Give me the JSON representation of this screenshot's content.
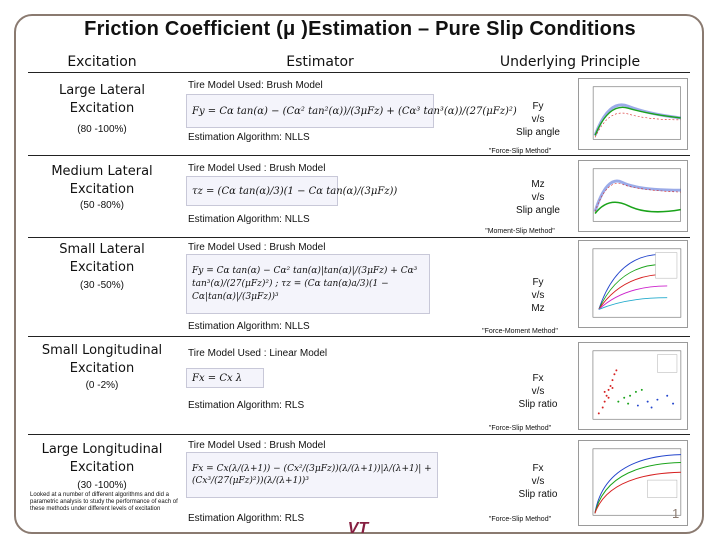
{
  "title": "Friction Coefficient (μ )Estimation – Pure Slip Conditions",
  "columns": {
    "excitation": "Excitation",
    "estimator": "Estimator",
    "principle": "Underlying Principle"
  },
  "rows": [
    {
      "name": "Large Lateral Excitation",
      "range": "(80 -100%)",
      "model": "Tire Model Used: Brush Model",
      "equation": "Fy = Cα tan(α) − (Cα² tan²(α))/(3μFz) + (Cα³ tan³(α))/(27(μFz)²)",
      "algorithm": "Estimation Algorithm: NLLS",
      "principle": [
        "Fy",
        "v/s",
        "Slip angle"
      ],
      "method": "\"Force-Slip Method\""
    },
    {
      "name": "Medium Lateral Excitation",
      "range": "(50 -80%)",
      "model": "Tire Model Used : Brush Model",
      "equation": "τz = (Cα tan(α)/3)(1 − Cα tan(α)/(3μFz))",
      "algorithm": "Estimation Algorithm: NLLS",
      "principle": [
        "Mz",
        "v/s",
        "Slip angle"
      ],
      "method": "\"Moment-Slip  Method\""
    },
    {
      "name": "Small Lateral Excitation",
      "range": "(30 -50%)",
      "model": "Tire Model Used : Brush Model",
      "equation": "Fy = Cα tan(α) − Cα² tan(α)|tan(α)|/(3μFz) + Cα³ tan³(α)/(27(μFz)²) ;  τz = (Cα tan(α)a/3)(1 − Cα|tan(α)|/(3μFz))³",
      "algorithm": "Estimation Algorithm: NLLS",
      "principle": [
        "Fy",
        "v/s",
        "Mz"
      ],
      "method": "\"Force-Moment  Method\""
    },
    {
      "name": "Small Longitudinal Excitation",
      "range": "(0 -2%)",
      "model": "Tire Model Used : Linear Model",
      "equation": "Fx = Cx λ",
      "algorithm": "Estimation Algorithm: RLS",
      "principle": [
        "Fx",
        "v/s",
        "Slip ratio"
      ],
      "method": "\"Force-Slip Method\""
    },
    {
      "name": "Large Longitudinal Excitation",
      "range": "(30 -100%)",
      "model": "Tire Model Used : Brush Model",
      "equation": "Fx = Cx(λ/(λ+1)) − (Cx²/(3μFz))(λ/(λ+1))|λ/(λ+1)| + (Cx³/(27(μFz)²))(λ/(λ+1))³",
      "algorithm": "Estimation Algorithm: RLS",
      "principle": [
        "Fx",
        "v/s",
        "Slip ratio"
      ],
      "method": "\"Force-Slip Method\""
    }
  ],
  "note": "Looked at a number of different algorithms and did a parametric analysis to study the performance of each of these methods under different levels of excitation",
  "page_number": "1",
  "logo_text": "VT",
  "colors": {
    "frame": "#8a7a70",
    "logo": "#861f41",
    "series_red": "#d62020",
    "series_green": "#1aa31a",
    "series_blue": "#2244cc"
  }
}
